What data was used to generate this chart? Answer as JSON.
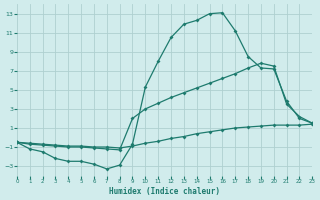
{
  "xlabel": "Humidex (Indice chaleur)",
  "bg_color": "#d1ecec",
  "line_color": "#1e7b6e",
  "grid_color": "#afd0d0",
  "xlim": [
    0,
    23
  ],
  "ylim": [
    -4,
    14
  ],
  "yticks": [
    -3,
    -1,
    1,
    3,
    5,
    7,
    9,
    11,
    13
  ],
  "xticks": [
    0,
    1,
    2,
    3,
    4,
    5,
    6,
    7,
    8,
    9,
    10,
    11,
    12,
    13,
    14,
    15,
    16,
    17,
    18,
    19,
    20,
    21,
    22,
    23
  ],
  "line1_x": [
    0,
    1,
    2,
    3,
    4,
    5,
    6,
    7,
    8,
    9,
    10,
    11,
    12,
    13,
    14,
    15,
    16,
    17,
    18,
    19,
    20,
    21,
    22,
    23
  ],
  "line1_y": [
    -0.5,
    -1.2,
    -1.5,
    -2.2,
    -2.5,
    -2.5,
    -2.8,
    -3.3,
    -2.9,
    -0.7,
    5.3,
    8.0,
    10.5,
    11.9,
    12.3,
    13.0,
    13.1,
    11.2,
    8.5,
    7.3,
    7.2,
    3.8,
    2.0,
    1.5
  ],
  "line2_x": [
    0,
    1,
    2,
    3,
    4,
    5,
    6,
    7,
    8,
    9,
    10,
    11,
    12,
    13,
    14,
    15,
    16,
    17,
    18,
    19,
    20,
    21,
    22,
    23
  ],
  "line2_y": [
    -0.5,
    -0.7,
    -0.8,
    -0.9,
    -1.0,
    -1.0,
    -1.1,
    -1.2,
    -1.3,
    2.0,
    3.0,
    3.6,
    4.2,
    4.7,
    5.2,
    5.7,
    6.2,
    6.7,
    7.3,
    7.8,
    7.5,
    3.5,
    2.2,
    1.5
  ],
  "line3_x": [
    0,
    1,
    2,
    3,
    4,
    5,
    6,
    7,
    8,
    9,
    10,
    11,
    12,
    13,
    14,
    15,
    16,
    17,
    18,
    19,
    20,
    21,
    22,
    23
  ],
  "line3_y": [
    -0.5,
    -0.6,
    -0.7,
    -0.8,
    -0.9,
    -0.9,
    -1.0,
    -1.0,
    -1.1,
    -0.9,
    -0.6,
    -0.4,
    -0.1,
    0.1,
    0.4,
    0.6,
    0.8,
    1.0,
    1.1,
    1.2,
    1.3,
    1.3,
    1.3,
    1.4
  ]
}
